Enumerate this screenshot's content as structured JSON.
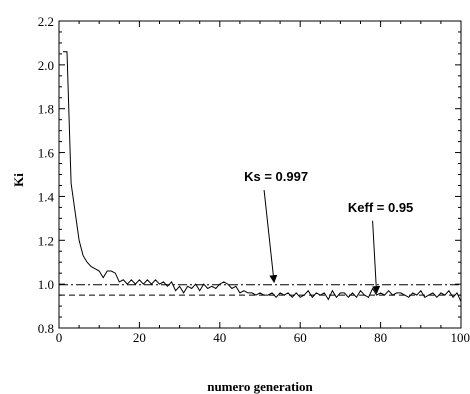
{
  "chart_data": {
    "type": "line",
    "xlabel": "numero generation",
    "ylabel": "Ki",
    "xlim": [
      0,
      100
    ],
    "ylim": [
      0.8,
      2.2
    ],
    "xticks": [
      0,
      20,
      40,
      60,
      80,
      100
    ],
    "yticks": [
      0.8,
      1.0,
      1.2,
      1.4,
      1.6,
      1.8,
      2.0,
      2.2
    ],
    "grid": false,
    "x": [
      1,
      2,
      3,
      4,
      5,
      6,
      7,
      8,
      9,
      10,
      11,
      12,
      13,
      14,
      15,
      16,
      17,
      18,
      19,
      20,
      21,
      22,
      23,
      24,
      25,
      26,
      27,
      28,
      29,
      30,
      31,
      32,
      33,
      34,
      35,
      36,
      37,
      38,
      39,
      40,
      41,
      42,
      43,
      44,
      45,
      46,
      47,
      48,
      49,
      50,
      51,
      52,
      53,
      54,
      55,
      56,
      57,
      58,
      59,
      60,
      61,
      62,
      63,
      64,
      65,
      66,
      67,
      68,
      69,
      70,
      71,
      72,
      73,
      74,
      75,
      76,
      77,
      78,
      79,
      80,
      81,
      82,
      83,
      84,
      85,
      86,
      87,
      88,
      89,
      90,
      91,
      92,
      93,
      94,
      95,
      96,
      97,
      98,
      99,
      100
    ],
    "values": [
      2.06,
      2.06,
      1.46,
      1.33,
      1.2,
      1.13,
      1.1,
      1.08,
      1.07,
      1.06,
      1.03,
      1.06,
      1.06,
      1.05,
      1.01,
      1.02,
      1.0,
      1.02,
      1.0,
      1.02,
      1.0,
      1.02,
      1.0,
      1.02,
      1.0,
      1.01,
      0.99,
      1.01,
      0.97,
      0.99,
      0.96,
      0.99,
      0.98,
      1.0,
      0.97,
      1.0,
      0.98,
      0.99,
      0.98,
      1.0,
      1.01,
      1.0,
      0.98,
      0.99,
      0.96,
      0.97,
      0.96,
      0.96,
      0.95,
      0.96,
      0.95,
      0.95,
      0.96,
      0.94,
      0.96,
      0.95,
      0.96,
      0.94,
      0.96,
      0.94,
      0.95,
      0.97,
      0.94,
      0.96,
      0.95,
      0.96,
      0.93,
      0.97,
      0.94,
      0.96,
      0.96,
      0.94,
      0.96,
      0.94,
      0.97,
      0.95,
      0.94,
      0.98,
      0.95,
      0.96,
      0.95,
      0.97,
      0.95,
      0.96,
      0.96,
      0.95,
      0.94,
      0.96,
      0.95,
      0.97,
      0.94,
      0.95,
      0.96,
      0.94,
      0.96,
      0.95,
      0.97,
      0.94,
      0.96,
      0.92
    ],
    "reference_lines": [
      {
        "value": 0.997,
        "label": "Ks = 0.997"
      },
      {
        "value": 0.95,
        "label": "Keff = 0.95"
      }
    ],
    "annotations": [
      {
        "text": "Ks = 0.997",
        "text_x": 54,
        "text_y": 1.47,
        "arrow_to_x": 53.5,
        "arrow_to_y": 1.0
      },
      {
        "text": "Keff = 0.95",
        "text_x": 80,
        "text_y": 1.33,
        "arrow_to_x": 79,
        "arrow_to_y": 0.95
      }
    ]
  }
}
